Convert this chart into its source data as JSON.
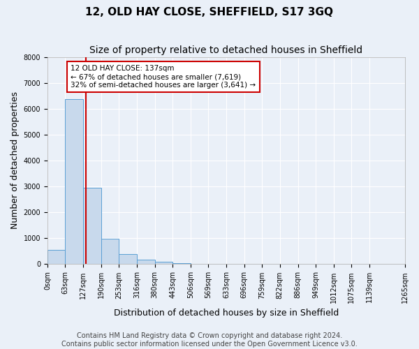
{
  "title": "12, OLD HAY CLOSE, SHEFFIELD, S17 3GQ",
  "subtitle": "Size of property relative to detached houses in Sheffield",
  "xlabel": "Distribution of detached houses by size in Sheffield",
  "ylabel": "Number of detached properties",
  "bar_values": [
    560,
    6380,
    2950,
    980,
    390,
    175,
    100,
    50,
    0,
    0,
    0,
    0,
    0,
    0,
    0,
    0,
    0,
    0,
    0
  ],
  "bin_edges": [
    0,
    63,
    127,
    190,
    253,
    316,
    380,
    443,
    506,
    569,
    633,
    696,
    759,
    822,
    886,
    949,
    1012,
    1075,
    1139,
    1265
  ],
  "tick_labels": [
    "0sqm",
    "63sqm",
    "127sqm",
    "190sqm",
    "253sqm",
    "316sqm",
    "380sqm",
    "443sqm",
    "506sqm",
    "569sqm",
    "633sqm",
    "696sqm",
    "759sqm",
    "822sqm",
    "886sqm",
    "949sqm",
    "1012sqm",
    "1075sqm",
    "1139sqm",
    "1265sqm"
  ],
  "bar_color": "#c8d9ec",
  "bar_edge_color": "#5a9fd4",
  "vline_x": 137,
  "vline_color": "#cc0000",
  "annotation_line1": "12 OLD HAY CLOSE: 137sqm",
  "annotation_line2": "← 67% of detached houses are smaller (7,619)",
  "annotation_line3": "32% of semi-detached houses are larger (3,641) →",
  "annotation_box_color": "#cc0000",
  "annotation_box_bg": "#ffffff",
  "ylim": [
    0,
    8000
  ],
  "yticks": [
    0,
    1000,
    2000,
    3000,
    4000,
    5000,
    6000,
    7000,
    8000
  ],
  "footer_line1": "Contains HM Land Registry data © Crown copyright and database right 2024.",
  "footer_line2": "Contains public sector information licensed under the Open Government Licence v3.0.",
  "bg_color": "#eaf0f8",
  "plot_bg_color": "#eaf0f8",
  "grid_color": "#ffffff",
  "title_fontsize": 11,
  "subtitle_fontsize": 10,
  "axis_label_fontsize": 9,
  "tick_fontsize": 7,
  "footer_fontsize": 7
}
